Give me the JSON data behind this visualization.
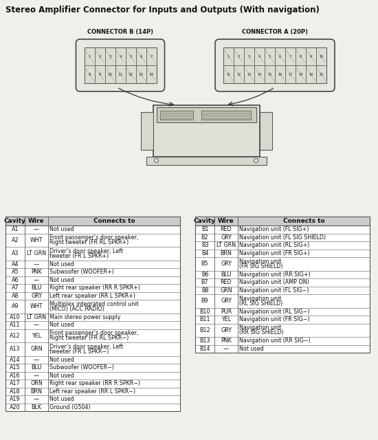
{
  "title": "Stereo Amplifier Connector for Inputs and Outputs (With navigation)",
  "conn_b_label": "CONNECTOR B (14P)",
  "conn_a_label": "CONNECTOR A (20P)",
  "table_a_headers": [
    "Cavity",
    "Wire",
    "Connects to"
  ],
  "table_a_rows": [
    [
      "A1",
      "—",
      "Not used"
    ],
    [
      "A2",
      "WHT",
      "Front passenger’s door speaker,\nRight tweeter (FR RL SPKR+)"
    ],
    [
      "A3",
      "LT GRN",
      "Driver’s door speaker, Left\ntweeter (FR L SPKR+)"
    ],
    [
      "A4",
      "—",
      "Not used"
    ],
    [
      "A5",
      "PNK",
      "Subwoofer (WOOFER+)"
    ],
    [
      "A6",
      "—",
      "Not used"
    ],
    [
      "A7",
      "BLU",
      "Right rear speaker (RR R SPKR+)"
    ],
    [
      "A8",
      "GRY",
      "Left rear speaker (RR L SPKR+)"
    ],
    [
      "A9",
      "WHT",
      "Multiplex integrated control unit\n(MICU) (ACC RADIO)"
    ],
    [
      "A10",
      "LT GRN",
      "Main stereo power supply"
    ],
    [
      "A11",
      "—",
      "Not used"
    ],
    [
      "A12",
      "YEL",
      "Front passenger’s door speaker,\nRight tweeter (FR RL SPKR−)"
    ],
    [
      "A13",
      "GRN",
      "Driver’s door speaker, Left\ntweeter (FR L SPKR−)"
    ],
    [
      "A14",
      "—",
      "Not used"
    ],
    [
      "A15",
      "BLU",
      "Subwoofer (WOOFER−)"
    ],
    [
      "A16",
      "—",
      "Not used"
    ],
    [
      "A17",
      "ORN",
      "Right rear speaker (RR R SPKR−)"
    ],
    [
      "A18",
      "BRN",
      "Left rear speaker (RR L SPKR−)"
    ],
    [
      "A19",
      "—",
      "Not used"
    ],
    [
      "A20",
      "BLK",
      "Ground (G504)"
    ]
  ],
  "table_b_headers": [
    "Cavity",
    "Wire",
    "Connects to"
  ],
  "table_b_rows": [
    [
      "B1",
      "RED",
      "Navigation unit (FL SIG+)"
    ],
    [
      "B2",
      "GRY",
      "Navigation unit (FL SIG SHIELD)"
    ],
    [
      "B3",
      "LT GRN",
      "Navigation unit (RL SIG+)"
    ],
    [
      "B4",
      "BRN",
      "Navigation unit (FR SIG+)"
    ],
    [
      "B5",
      "GRY",
      "Navigation unit\n(FR SIG SHIELD)"
    ],
    [
      "B6",
      "BLU",
      "Navigation unit (RR SIG+)"
    ],
    [
      "B7",
      "RED",
      "Navigation unit (AMP ON)"
    ],
    [
      "B8",
      "GRN",
      "Navigation unit (FL SIG−)"
    ],
    [
      "B9",
      "GRY",
      "Navigation unit\n(RL SIG SHIELD)"
    ],
    [
      "B10",
      "PUR",
      "Navigation unit (RL SIG−)"
    ],
    [
      "B11",
      "YEL",
      "Navigation unit (FR SIG−)"
    ],
    [
      "B12",
      "GRY",
      "Navigation unit\n(RR SIG SHIELD)"
    ],
    [
      "B13",
      "PNK",
      "Navigation unit (RR SIG−)"
    ],
    [
      "B14",
      "—",
      "Not used"
    ]
  ],
  "bg_color": "#f0f0eb",
  "header_bg": "#cccccc",
  "border_color": "#555555",
  "title_fontsize": 8.5,
  "header_fontsize": 6.5,
  "cell_fontsize": 5.8,
  "connector_label_fontsize": 6.0
}
